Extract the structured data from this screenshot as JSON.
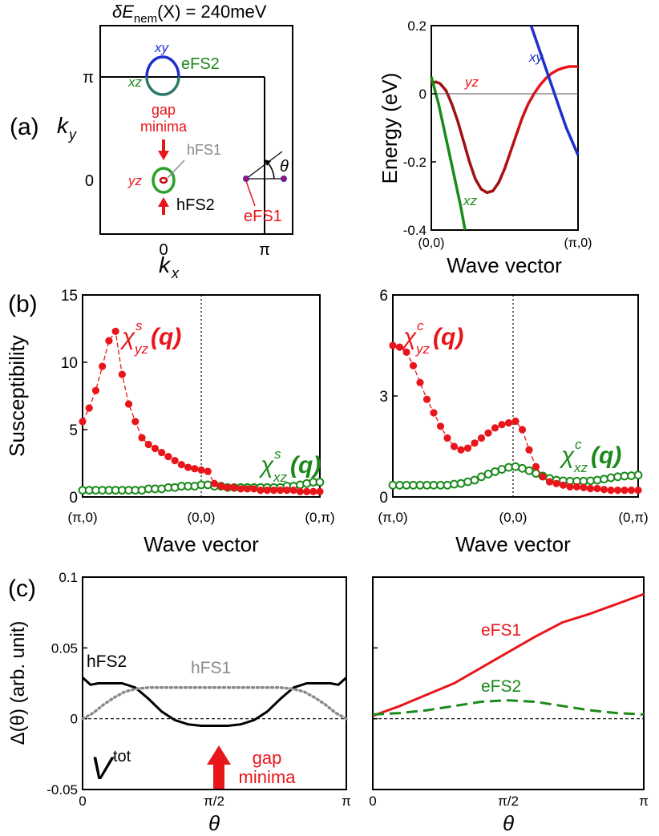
{
  "figure": {
    "panel_labels": [
      "(a)",
      "(b)",
      "(c)"
    ],
    "colors": {
      "red": "#e8161b",
      "green": "#1a8a1a",
      "blue": "#1f2fd0",
      "darkred": "#a01010",
      "gray": "#8a8a8a",
      "black": "#000000"
    }
  },
  "chart_data": [
    {
      "id": "a-left",
      "type": "diagram",
      "title": "δE_nem(X) = 240meV",
      "xlabel": "k_x",
      "ylabel": "k_y",
      "x_ticks": [
        "0",
        "π"
      ],
      "y_ticks": [
        "π",
        "0"
      ],
      "labels": {
        "xy": "xy",
        "xz_top": "xz",
        "eFS2": "eFS2",
        "gap_minima": [
          "gap",
          "minima"
        ],
        "hFS1": "hFS1",
        "yz": "yz",
        "hFS2": "hFS2",
        "eFS1": "eFS1",
        "theta": "θ"
      }
    },
    {
      "id": "a-right",
      "type": "line",
      "xlabel": "Wave vector",
      "ylabel": "Energy (eV)",
      "x_ticks": [
        "(0,0)",
        "(π,0)"
      ],
      "ylim": [
        -0.4,
        0.2
      ],
      "y_ticks": [
        "0.2",
        "0",
        "-0.2",
        "-0.4"
      ],
      "xlim": [
        0,
        1
      ],
      "series": [
        {
          "name": "yz",
          "color": "red",
          "x": [
            0,
            0.03,
            0.06,
            0.1,
            0.14,
            0.18,
            0.22,
            0.26,
            0.3,
            0.34,
            0.38,
            0.42,
            0.46,
            0.5,
            0.54,
            0.58,
            0.62,
            0.66,
            0.7,
            0.74,
            0.78,
            0.82,
            0.86,
            0.9,
            0.94,
            0.98,
            1.0
          ],
          "y": [
            0.03,
            0.035,
            0.03,
            0.01,
            -0.03,
            -0.08,
            -0.14,
            -0.2,
            -0.25,
            -0.28,
            -0.29,
            -0.285,
            -0.26,
            -0.22,
            -0.17,
            -0.12,
            -0.07,
            -0.03,
            0.0,
            0.025,
            0.045,
            0.06,
            0.07,
            0.076,
            0.08,
            0.08,
            0.08
          ]
        },
        {
          "name": "xz",
          "color": "green",
          "x": [
            0,
            0.05,
            0.1,
            0.15,
            0.2,
            0.23
          ],
          "y": [
            0.05,
            -0.03,
            -0.13,
            -0.23,
            -0.33,
            -0.4
          ]
        },
        {
          "name": "xy",
          "color": "blue",
          "x": [
            0.68,
            0.72,
            0.76,
            0.8,
            0.84,
            0.88,
            0.92,
            0.96,
            1.0
          ],
          "y": [
            0.2,
            0.15,
            0.1,
            0.05,
            0.0,
            -0.05,
            -0.1,
            -0.14,
            -0.18
          ]
        }
      ],
      "labels": {
        "yz": "yz",
        "xz": "xz",
        "xy": "xy"
      }
    },
    {
      "id": "b-left",
      "type": "line",
      "ylabel": "Susceptibility",
      "xlabel": "Wave vector",
      "x_ticks": [
        "(π,0)",
        "(0,0)",
        "(0,π)"
      ],
      "ylim": [
        0,
        15
      ],
      "y_ticks": [
        "15",
        "10",
        "5",
        "0"
      ],
      "series": [
        {
          "name": "χ^s_yz(q)",
          "label_main": "χ",
          "label_sup": "s",
          "label_sub": "yz",
          "label_arg": "(q)",
          "color": "red",
          "y": [
            5.6,
            6.6,
            7.9,
            9.7,
            11.6,
            12.3,
            9.1,
            6.9,
            5.6,
            4.4,
            3.9,
            3.6,
            3.3,
            3.0,
            2.7,
            2.4,
            2.2,
            2.1,
            2.0,
            1.9,
            1.0,
            0.8,
            0.7,
            0.7,
            0.6,
            0.6,
            0.6,
            0.5,
            0.5,
            0.5,
            0.5,
            0.5,
            0.5,
            0.4,
            0.4,
            0.4,
            0.4
          ]
        },
        {
          "name": "χ^s_xz(q)",
          "label_main": "χ",
          "label_sup": "s",
          "label_sub": "xz",
          "label_arg": "(q)",
          "color": "green",
          "y": [
            0.5,
            0.5,
            0.5,
            0.5,
            0.5,
            0.5,
            0.5,
            0.5,
            0.5,
            0.5,
            0.6,
            0.6,
            0.6,
            0.7,
            0.7,
            0.8,
            0.8,
            0.8,
            0.9,
            0.9,
            0.8,
            0.8,
            0.7,
            0.7,
            0.7,
            0.7,
            0.7,
            0.7,
            0.7,
            0.7,
            0.7,
            0.8,
            0.8,
            0.9,
            1.0,
            1.1,
            1.1
          ]
        }
      ]
    },
    {
      "id": "b-right",
      "type": "line",
      "xlabel": "Wave vector",
      "x_ticks": [
        "(π,0)",
        "(0,0)",
        "(0,π)"
      ],
      "ylim": [
        0,
        6
      ],
      "y_ticks": [
        "6",
        "3",
        "0"
      ],
      "series": [
        {
          "name": "χ^c_yz(q)",
          "label_main": "χ",
          "label_sup": "c",
          "label_sub": "yz",
          "label_arg": "(q)",
          "color": "red",
          "y": [
            4.5,
            4.45,
            4.3,
            3.9,
            3.4,
            2.9,
            2.5,
            2.1,
            1.75,
            1.5,
            1.4,
            1.45,
            1.6,
            1.75,
            1.9,
            2.05,
            2.15,
            2.2,
            2.25,
            2.0,
            1.4,
            0.9,
            0.6,
            0.45,
            0.4,
            0.35,
            0.3,
            0.3,
            0.28,
            0.25,
            0.25,
            0.22,
            0.2,
            0.2,
            0.2,
            0.2,
            0.2
          ]
        },
        {
          "name": "χ^c_xz(q)",
          "label_main": "χ",
          "label_sup": "c",
          "label_sub": "xz",
          "label_arg": "(q)",
          "color": "green",
          "y": [
            0.35,
            0.35,
            0.35,
            0.35,
            0.35,
            0.35,
            0.35,
            0.35,
            0.35,
            0.38,
            0.4,
            0.45,
            0.5,
            0.6,
            0.68,
            0.75,
            0.82,
            0.88,
            0.9,
            0.85,
            0.78,
            0.7,
            0.62,
            0.55,
            0.5,
            0.48,
            0.47,
            0.47,
            0.47,
            0.48,
            0.5,
            0.53,
            0.57,
            0.6,
            0.62,
            0.63,
            0.65
          ]
        }
      ]
    },
    {
      "id": "c-left",
      "type": "line",
      "ylabel": "Δ(θ) (arb. unit)",
      "xlabel": "θ",
      "x_ticks": [
        "0",
        "π/2",
        "π"
      ],
      "y_ticks": [
        "0.1",
        "0.05",
        "0",
        "-0.05"
      ],
      "ylim": [
        -0.05,
        0.1
      ],
      "xlim": [
        0,
        1
      ],
      "series": [
        {
          "name": "hFS2",
          "color": "black",
          "style": "solid",
          "x": [
            0,
            0.03,
            0.06,
            0.1,
            0.15,
            0.2,
            0.25,
            0.3,
            0.35,
            0.4,
            0.45,
            0.5,
            0.55,
            0.6,
            0.65,
            0.7,
            0.75,
            0.8,
            0.85,
            0.9,
            0.94,
            0.97,
            1.0
          ],
          "y": [
            0.029,
            0.024,
            0.025,
            0.025,
            0.025,
            0.022,
            0.014,
            0.005,
            -0.001,
            -0.004,
            -0.005,
            -0.005,
            -0.005,
            -0.004,
            -0.001,
            0.005,
            0.014,
            0.022,
            0.025,
            0.025,
            0.025,
            0.024,
            0.029
          ]
        },
        {
          "name": "hFS1",
          "color": "gray",
          "style": "dotted",
          "x": [
            0,
            0.04,
            0.08,
            0.12,
            0.16,
            0.2,
            0.25,
            0.3,
            0.35,
            0.4,
            0.45,
            0.5,
            0.55,
            0.6,
            0.65,
            0.7,
            0.75,
            0.8,
            0.84,
            0.88,
            0.92,
            0.96,
            1.0
          ],
          "y": [
            0.0,
            0.004,
            0.01,
            0.015,
            0.019,
            0.021,
            0.022,
            0.022,
            0.022,
            0.022,
            0.022,
            0.022,
            0.022,
            0.022,
            0.022,
            0.022,
            0.022,
            0.021,
            0.019,
            0.015,
            0.01,
            0.004,
            0.0
          ]
        }
      ],
      "labels": {
        "hFS2": "hFS2",
        "hFS1": "hFS1",
        "V_main": "V",
        "V_sup": "tot",
        "gap_minima": [
          "gap",
          "minima"
        ]
      }
    },
    {
      "id": "c-right",
      "type": "line",
      "xlabel": "θ",
      "x_ticks": [
        "0",
        "π/2",
        "π"
      ],
      "ylim": [
        -0.05,
        0.1
      ],
      "xlim": [
        0,
        1
      ],
      "series": [
        {
          "name": "eFS1",
          "color": "red",
          "style": "solid",
          "x": [
            0,
            0.1,
            0.2,
            0.3,
            0.4,
            0.5,
            0.6,
            0.7,
            0.8,
            0.9,
            1.0
          ],
          "y": [
            0.002,
            0.009,
            0.017,
            0.025,
            0.036,
            0.047,
            0.058,
            0.068,
            0.074,
            0.081,
            0.088
          ]
        },
        {
          "name": "eFS2",
          "color": "green",
          "style": "dashed",
          "x": [
            0,
            0.1,
            0.2,
            0.3,
            0.4,
            0.5,
            0.6,
            0.7,
            0.8,
            0.9,
            1.0
          ],
          "y": [
            0.003,
            0.004,
            0.006,
            0.009,
            0.012,
            0.013,
            0.012,
            0.009,
            0.006,
            0.004,
            0.003
          ]
        }
      ],
      "labels": {
        "eFS1": "eFS1",
        "eFS2": "eFS2"
      }
    }
  ]
}
